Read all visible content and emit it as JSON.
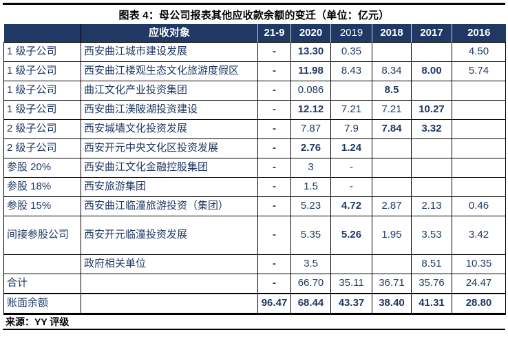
{
  "page": {
    "title": "图表 4：母公司报表其他应收款余额的变迁（单位：亿元）",
    "source": "来源：YY 评级"
  },
  "colors": {
    "header_bg": "#1F3864",
    "body_text": "#1F3864",
    "border": "#000000"
  },
  "table": {
    "columns": [
      "",
      "应收对象",
      "21-9",
      "2020",
      "2019",
      "2018",
      "2017",
      "2016"
    ],
    "rows": [
      {
        "category": "1 级子公司",
        "name": "西安曲江城市建设发展",
        "values": [
          {
            "t": "-",
            "b": true
          },
          {
            "t": "13.30",
            "b": true
          },
          {
            "t": "0.35",
            "b": false
          },
          {
            "t": "",
            "b": false
          },
          {
            "t": "",
            "b": false
          },
          {
            "t": "4.50",
            "b": false
          }
        ]
      },
      {
        "category": "1 级子公司",
        "name": "西安曲江楼观生态文化旅游度假区",
        "values": [
          {
            "t": "-",
            "b": true
          },
          {
            "t": "11.98",
            "b": true
          },
          {
            "t": "8.43",
            "b": false
          },
          {
            "t": "8.34",
            "b": false
          },
          {
            "t": "8.00",
            "b": true
          },
          {
            "t": "5.74",
            "b": false
          }
        ]
      },
      {
        "category": "1 级子公司",
        "name": "曲江文化产业投资集团",
        "values": [
          {
            "t": "-",
            "b": true
          },
          {
            "t": "0.086",
            "b": false
          },
          {
            "t": "",
            "b": false
          },
          {
            "t": "8.5",
            "b": true
          },
          {
            "t": "",
            "b": false
          },
          {
            "t": "",
            "b": false
          }
        ]
      },
      {
        "category": "1 级子公司",
        "name": "西安曲江渼陂湖投资建设",
        "values": [
          {
            "t": "-",
            "b": true
          },
          {
            "t": "12.12",
            "b": true
          },
          {
            "t": "7.21",
            "b": false
          },
          {
            "t": "7.21",
            "b": false
          },
          {
            "t": "10.27",
            "b": true
          },
          {
            "t": "",
            "b": false
          }
        ]
      },
      {
        "category": "2 级子公司",
        "name": "西安城墙文化投资发展",
        "values": [
          {
            "t": "-",
            "b": true
          },
          {
            "t": "7.87",
            "b": false
          },
          {
            "t": "7.9",
            "b": false
          },
          {
            "t": "7.84",
            "b": true
          },
          {
            "t": "3.32",
            "b": true
          },
          {
            "t": "",
            "b": false
          }
        ]
      },
      {
        "category": "2 级子公司",
        "name": "西安开元中央文化区投资发展",
        "values": [
          {
            "t": "-",
            "b": true
          },
          {
            "t": "2.76",
            "b": true
          },
          {
            "t": "1.24",
            "b": true
          },
          {
            "t": "",
            "b": false
          },
          {
            "t": "",
            "b": false
          },
          {
            "t": "",
            "b": false
          }
        ]
      },
      {
        "category": "参股 20%",
        "name": "西安曲江文化金融控股集团",
        "values": [
          {
            "t": "-",
            "b": true
          },
          {
            "t": "3",
            "b": false
          },
          {
            "t": "-",
            "b": false
          },
          {
            "t": "",
            "b": false
          },
          {
            "t": "",
            "b": false
          },
          {
            "t": "",
            "b": false
          }
        ]
      },
      {
        "category": "参股 18%",
        "name": "西安旅游集团",
        "values": [
          {
            "t": "-",
            "b": true
          },
          {
            "t": "1.5",
            "b": false
          },
          {
            "t": "-",
            "b": false
          },
          {
            "t": "",
            "b": false
          },
          {
            "t": "",
            "b": false
          },
          {
            "t": "",
            "b": false
          }
        ]
      },
      {
        "category": "参股 15%",
        "name": "西安曲江临潼旅游投资（集团）",
        "values": [
          {
            "t": "-",
            "b": true
          },
          {
            "t": "5.23",
            "b": false
          },
          {
            "t": "4.72",
            "b": true
          },
          {
            "t": "2.87",
            "b": false
          },
          {
            "t": "2.13",
            "b": false
          },
          {
            "t": "0.46",
            "b": false
          }
        ]
      },
      {
        "category": "间接参股公司",
        "name": "西安开元临潼投资发展",
        "values": [
          {
            "t": "-",
            "b": true
          },
          {
            "t": "5.35",
            "b": false
          },
          {
            "t": "5.26",
            "b": true
          },
          {
            "t": "1.95",
            "b": false
          },
          {
            "t": "3.53",
            "b": false
          },
          {
            "t": "3.42",
            "b": false
          }
        ]
      },
      {
        "category": "",
        "name": "政府相关单位",
        "values": [
          {
            "t": "-",
            "b": true
          },
          {
            "t": "3.5",
            "b": false
          },
          {
            "t": "",
            "b": false
          },
          {
            "t": "",
            "b": false
          },
          {
            "t": "8.51",
            "b": false
          },
          {
            "t": "10.35",
            "b": false
          }
        ]
      },
      {
        "category": "合计",
        "name": "",
        "values": [
          {
            "t": "-",
            "b": true
          },
          {
            "t": "66.70",
            "b": false
          },
          {
            "t": "35.11",
            "b": false
          },
          {
            "t": "36.71",
            "b": false
          },
          {
            "t": "35.76",
            "b": false
          },
          {
            "t": "24.47",
            "b": false
          }
        ]
      },
      {
        "category": "账面余额",
        "name": "",
        "values": [
          {
            "t": "96.47",
            "b": true
          },
          {
            "t": "68.44",
            "b": true
          },
          {
            "t": "43.37",
            "b": true
          },
          {
            "t": "38.40",
            "b": true
          },
          {
            "t": "41.31",
            "b": true
          },
          {
            "t": "28.80",
            "b": true
          }
        ]
      }
    ]
  }
}
